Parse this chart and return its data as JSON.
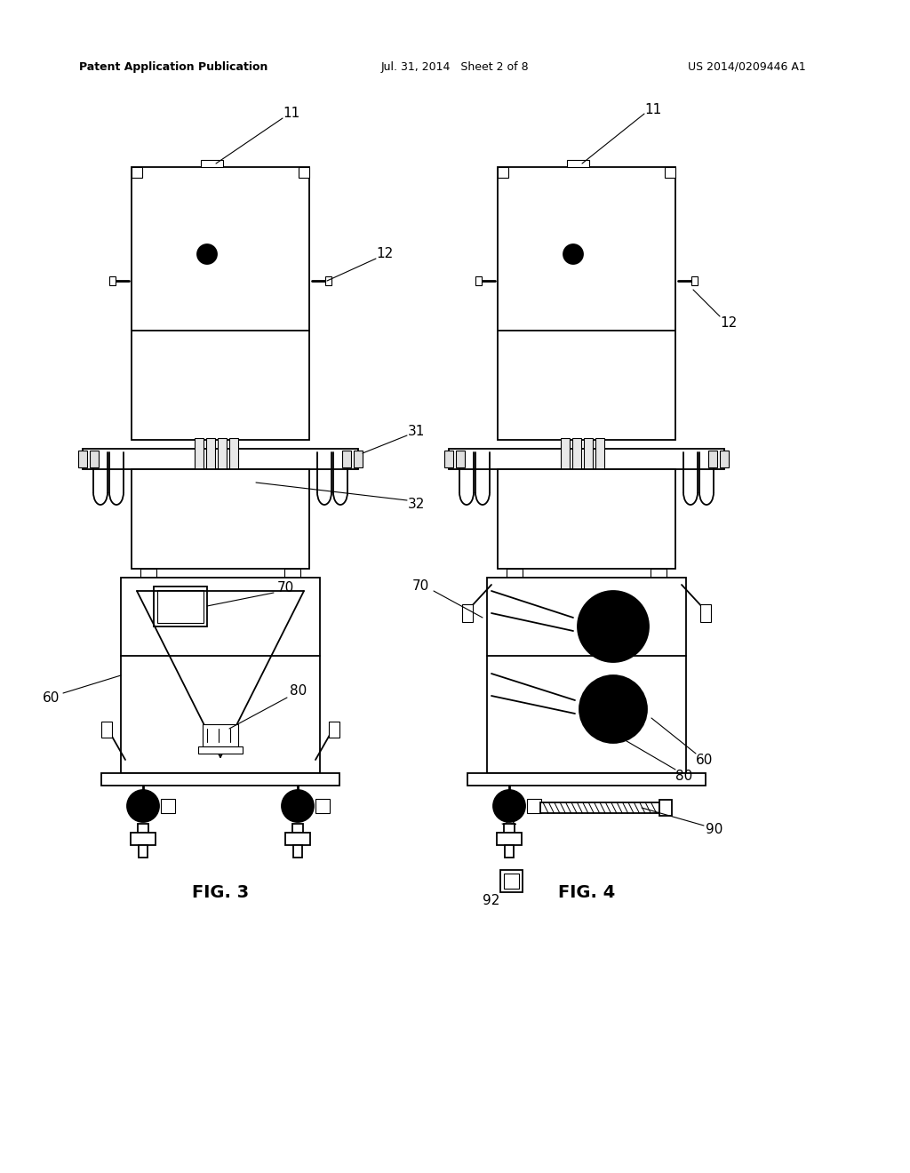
{
  "page_bg": "#ffffff",
  "line_color": "#000000",
  "header_left": "Patent Application Publication",
  "header_mid": "Jul. 31, 2014   Sheet 2 of 8",
  "header_right": "US 2014/0209446 A1",
  "fig3_label": "FIG. 3",
  "fig4_label": "FIG. 4"
}
